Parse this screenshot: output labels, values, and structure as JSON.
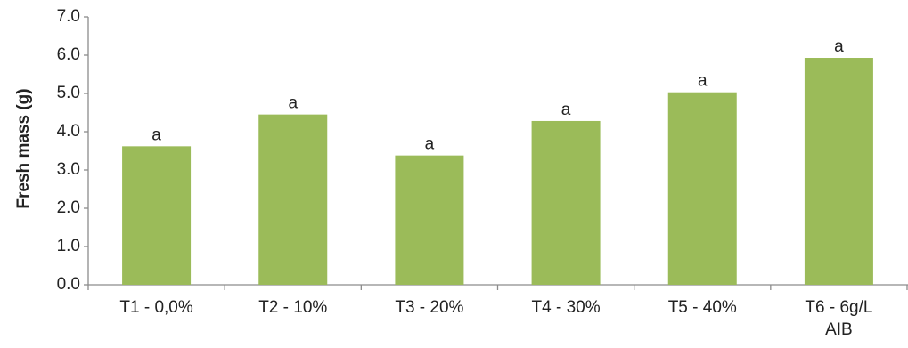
{
  "chart_data": {
    "type": "bar",
    "title": "",
    "xlabel": "",
    "ylabel": "Fresh mass (g)",
    "ylim": [
      0,
      7
    ],
    "yticks": [
      "0.0",
      "1.0",
      "2.0",
      "3.0",
      "4.0",
      "5.0",
      "6.0",
      "7.0"
    ],
    "categories": [
      [
        "T1 - 0,0%"
      ],
      [
        "T2 - 10%"
      ],
      [
        "T3 - 20%"
      ],
      [
        "T4 - 30%"
      ],
      [
        "T5 - 40%"
      ],
      [
        "T6 - 6g/L",
        "AIB"
      ]
    ],
    "values": [
      3.62,
      4.45,
      3.38,
      4.28,
      5.03,
      5.93
    ],
    "bar_labels": [
      "a",
      "a",
      "a",
      "a",
      "a",
      "a"
    ],
    "bar_color": "#9bbb59",
    "grid": false
  }
}
